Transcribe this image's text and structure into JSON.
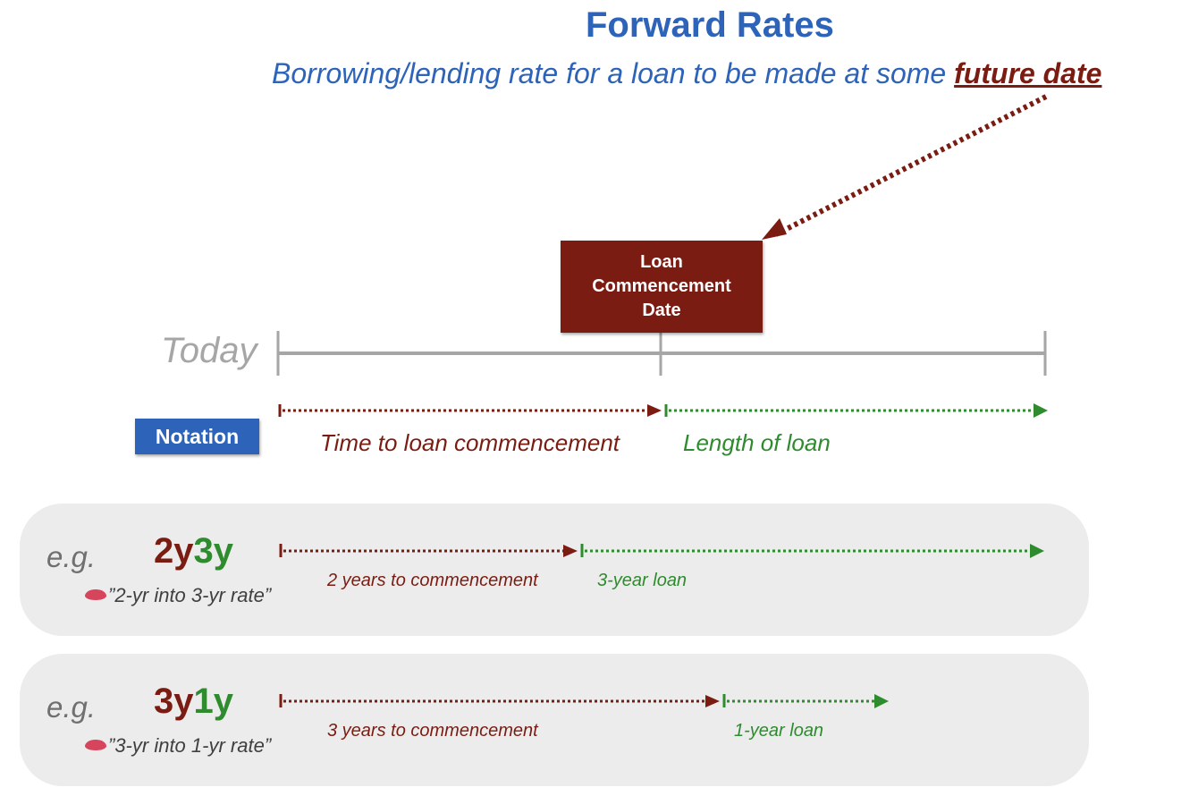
{
  "title": "Forward Rates",
  "subtitle": {
    "prefix": "Borrowing/lending rate for a loan to be made at some ",
    "emphasis": "future date"
  },
  "loan_commencement_box": {
    "line1": "Loan",
    "line2": "Commencement",
    "line3": "Date"
  },
  "timeline": {
    "today_label": "Today"
  },
  "notation": {
    "badge": "Notation",
    "time_to_commencement": "Time to loan commencement",
    "length_of_loan": "Length of loan"
  },
  "examples": [
    {
      "prefix": "e.g.",
      "code_start": "2y",
      "code_length": "3y",
      "spoken": "”2-yr into 3-yr rate”",
      "commencement_label": "2 years to commencement",
      "loan_label": "3-year loan",
      "years_to_commencement": 2,
      "loan_length_years": 3
    },
    {
      "prefix": "e.g.",
      "code_start": "3y",
      "code_length": "1y",
      "spoken": "”3-yr into 1-yr rate”",
      "commencement_label": "3 years to commencement",
      "loan_label": "1-year loan",
      "years_to_commencement": 3,
      "loan_length_years": 1
    }
  ],
  "colors": {
    "title_blue": "#2d63b8",
    "maroon": "#7b1c12",
    "green": "#2e8b2e",
    "timeline_gray": "#a6a6a6",
    "panel_gray": "#ececec"
  }
}
